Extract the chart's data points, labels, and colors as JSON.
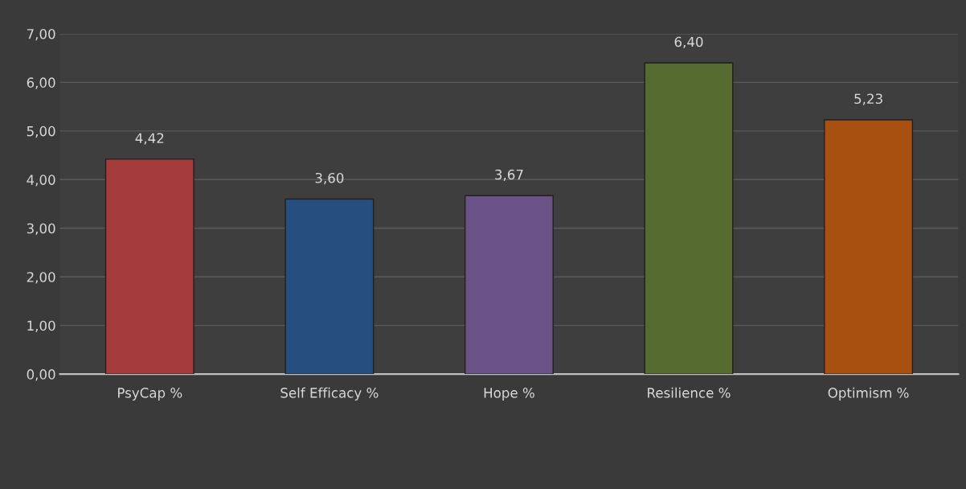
{
  "chart_data": {
    "type": "bar",
    "categories": [
      "PsyCap %",
      "Self Efficacy %",
      "Hope %",
      "Resilience %",
      "Optimism %"
    ],
    "values": [
      4.42,
      3.6,
      3.67,
      6.4,
      5.23
    ],
    "colors": [
      "#a33c3a",
      "#264f80",
      "#6a5186",
      "#566b2f",
      "#a8500f"
    ],
    "value_labels": [
      "4,42",
      "3,60",
      "3,67",
      "6,40",
      "5,23"
    ],
    "ylim": [
      0,
      7
    ],
    "yticks": [
      {
        "value": 0,
        "label": "0,00"
      },
      {
        "value": 1,
        "label": "1,00"
      },
      {
        "value": 2,
        "label": "2,00"
      },
      {
        "value": 3,
        "label": "3,00"
      },
      {
        "value": 4,
        "label": "4,00"
      },
      {
        "value": 5,
        "label": "5,00"
      },
      {
        "value": 6,
        "label": "6,00"
      },
      {
        "value": 7,
        "label": "7,00"
      }
    ],
    "grid": "y"
  }
}
